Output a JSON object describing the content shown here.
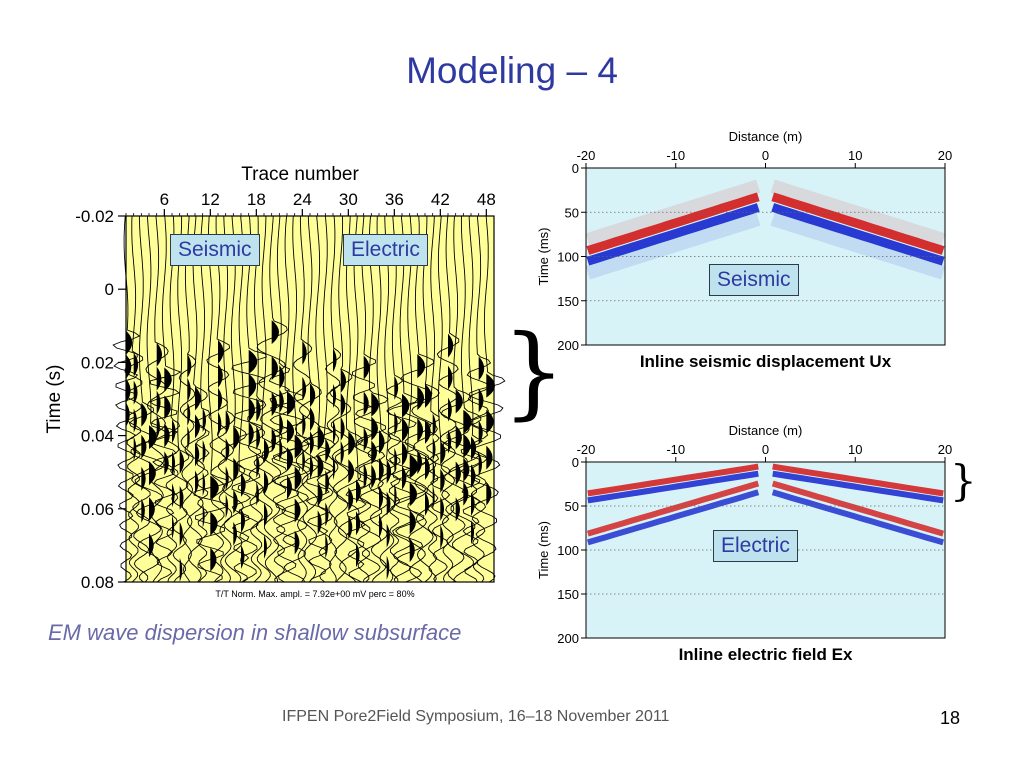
{
  "slide": {
    "title": "Modeling – 4",
    "caption": "EM wave dispersion in shallow subsurface",
    "footer": "IFPEN Pore2Field Symposium, 16–18 November 2011",
    "page_number": "18"
  },
  "tags": {
    "seismic_left": "Seismic",
    "electric_left": "Electric",
    "seismic_right": "Seismic",
    "electric_right": "Electric"
  },
  "colors": {
    "title": "#2e3aa1",
    "trace_bg": "#ffff99",
    "panel_bg": "#d8f3f8",
    "red": "#d42424",
    "blue": "#1f2fcf",
    "tag_bg": "#bfe3ee"
  },
  "chart_data": [
    {
      "type": "line",
      "xlabel": "Trace number",
      "ylabel": "Time (s)",
      "x_ticks": [
        6,
        12,
        18,
        24,
        30,
        36,
        42,
        48
      ],
      "y_ticks": [
        "-0.02",
        "0",
        "0.02",
        "0.04",
        "0.06",
        "0.08"
      ],
      "xlim": [
        1,
        49
      ],
      "ylim": [
        -0.02,
        0.08
      ],
      "footnote": "T/T Norm.    Max. ampl. = 7.92e+00 mV    perc = 80%",
      "traces": 48
    },
    {
      "type": "heatmap",
      "title": "Inline seismic displacement Ux",
      "xlabel": "Distance (m)",
      "ylabel": "Time (ms)",
      "x_ticks": [
        "-20",
        "-10",
        "0",
        "10",
        "20"
      ],
      "y_ticks": [
        "0",
        "50",
        "100",
        "150",
        "200"
      ],
      "xlim": [
        -20,
        20
      ],
      "ylim": [
        0,
        200
      ]
    },
    {
      "type": "heatmap",
      "title": "Inline electric field Ex",
      "xlabel": "Distance (m)",
      "ylabel": "Time (ms)",
      "x_ticks": [
        "-20",
        "-10",
        "0",
        "10",
        "20"
      ],
      "y_ticks": [
        "0",
        "50",
        "100",
        "150",
        "200"
      ],
      "xlim": [
        -20,
        20
      ],
      "ylim": [
        0,
        200
      ]
    }
  ]
}
